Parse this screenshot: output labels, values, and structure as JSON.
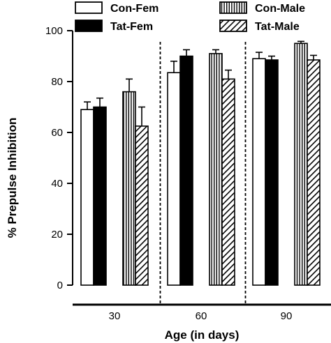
{
  "chart_data": {
    "type": "bar",
    "ylabel": "% Prepulse Inhibition",
    "xlabel": "Age (in days)",
    "ylim": [
      0,
      100
    ],
    "yticks": [
      0,
      20,
      40,
      60,
      80,
      100
    ],
    "categories": [
      "30",
      "60",
      "90"
    ],
    "grid": false,
    "legend_position": "top",
    "series": [
      {
        "name": "Con-Fem",
        "pattern": "white",
        "values": [
          69,
          83.5,
          89
        ],
        "errors": [
          3,
          4.5,
          2.5
        ]
      },
      {
        "name": "Tat-Fem",
        "pattern": "black",
        "values": [
          70,
          90,
          88.5
        ],
        "errors": [
          3.5,
          2.5,
          1.5
        ]
      },
      {
        "name": "Con-Male",
        "pattern": "vertical-stripes",
        "values": [
          76,
          91,
          95
        ],
        "errors": [
          5,
          1.5,
          0.8
        ]
      },
      {
        "name": "Tat-Male",
        "pattern": "diagonal-hatch",
        "values": [
          62.5,
          81,
          88.5
        ],
        "errors": [
          7.5,
          3.5,
          1.8
        ]
      }
    ],
    "colors": {
      "fill_dark": "#000000",
      "fill_light": "#ffffff",
      "stroke": "#000000"
    }
  }
}
